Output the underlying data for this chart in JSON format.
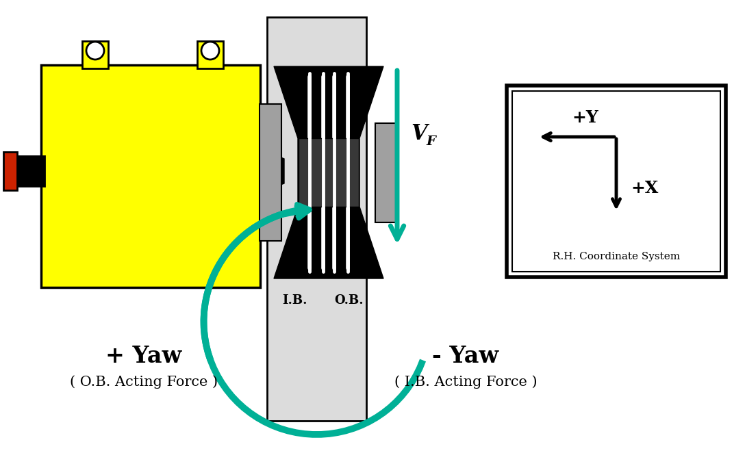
{
  "bg_color": "#ffffff",
  "teal_color": "#00B096",
  "yellow_color": "#FFFF00",
  "black": "#000000",
  "red_color": "#CC2200",
  "light_gray": "#DCDCDC",
  "mid_gray": "#A0A0A0",
  "dark_gray": "#606060",
  "ib_label": "I.B.",
  "ob_label": "O.B.",
  "plus_yaw": "+ Yaw",
  "minus_yaw": "- Yaw",
  "ob_force": "( O.B. Acting Force )",
  "ib_force": "( I.B. Acting Force )",
  "plus_y": "+Y",
  "plus_x": "+X",
  "rh_coord": "R.H. Coordinate System"
}
